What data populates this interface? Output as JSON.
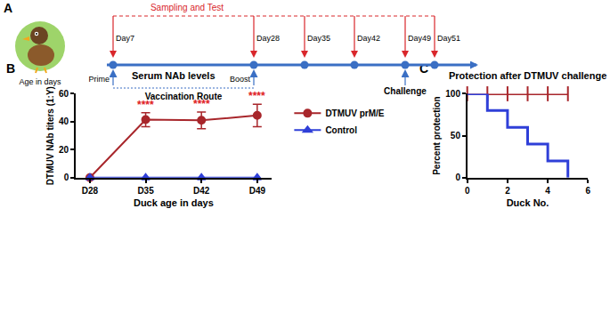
{
  "diagram": {
    "panel": "A",
    "title": "Sampling and Test",
    "days": [
      "Day7",
      "Day28",
      "Day35",
      "Day42",
      "Day49",
      "Day51"
    ],
    "subject": "Age in days",
    "events": [
      {
        "label": "Prime",
        "day": "Day7"
      },
      {
        "label": "Boost",
        "day": "Day28"
      },
      {
        "label": "Challenge",
        "day": "Day49"
      }
    ],
    "route": "Vaccination Route"
  },
  "chart_data": [
    {
      "panel": "B",
      "type": "line",
      "title": "Serum NAb levels",
      "x_label": "Duck age in days",
      "y_label": "DTMUV NAb titers (1:Y)",
      "categories": [
        "D28",
        "D35",
        "D42",
        "D49"
      ],
      "series": [
        {
          "name": "DTMUV prM/E",
          "color": "#a8262b",
          "marker": "circle",
          "values": [
            0,
            41.5,
            41,
            44.5
          ],
          "errors": [
            0,
            5,
            6,
            8
          ]
        },
        {
          "name": "Control",
          "color": "#2f3fd8",
          "marker": "triangle-up",
          "values": [
            0,
            0,
            0,
            0
          ]
        }
      ],
      "annotations": [
        {
          "category": "D35",
          "text": "****"
        },
        {
          "category": "D42",
          "text": "****"
        },
        {
          "category": "D49",
          "text": "****"
        }
      ],
      "ylim": [
        0,
        60
      ],
      "yticks": [
        0,
        20,
        40,
        60
      ],
      "grid": false,
      "legend": "right"
    },
    {
      "panel": "C",
      "type": "step",
      "title": "Protection after DTMUV challenge",
      "x_label": "Duck No.",
      "y_label": "Percent protection",
      "x": [
        0,
        1,
        2,
        3,
        4,
        5
      ],
      "series": [
        {
          "name": "DTMUV prM/E",
          "color": "#a8262b",
          "marker": "line-ns",
          "values": [
            100,
            100,
            100,
            100,
            100,
            100
          ]
        },
        {
          "name": "Control",
          "color": "#2f3fd8",
          "values": [
            100,
            80,
            60,
            40,
            20,
            0
          ]
        }
      ],
      "xlim": [
        0,
        6
      ],
      "xticks": [
        0,
        2,
        4,
        6
      ],
      "ylim": [
        0,
        100
      ],
      "yticks": [
        0,
        50,
        100
      ],
      "grid": false
    }
  ]
}
